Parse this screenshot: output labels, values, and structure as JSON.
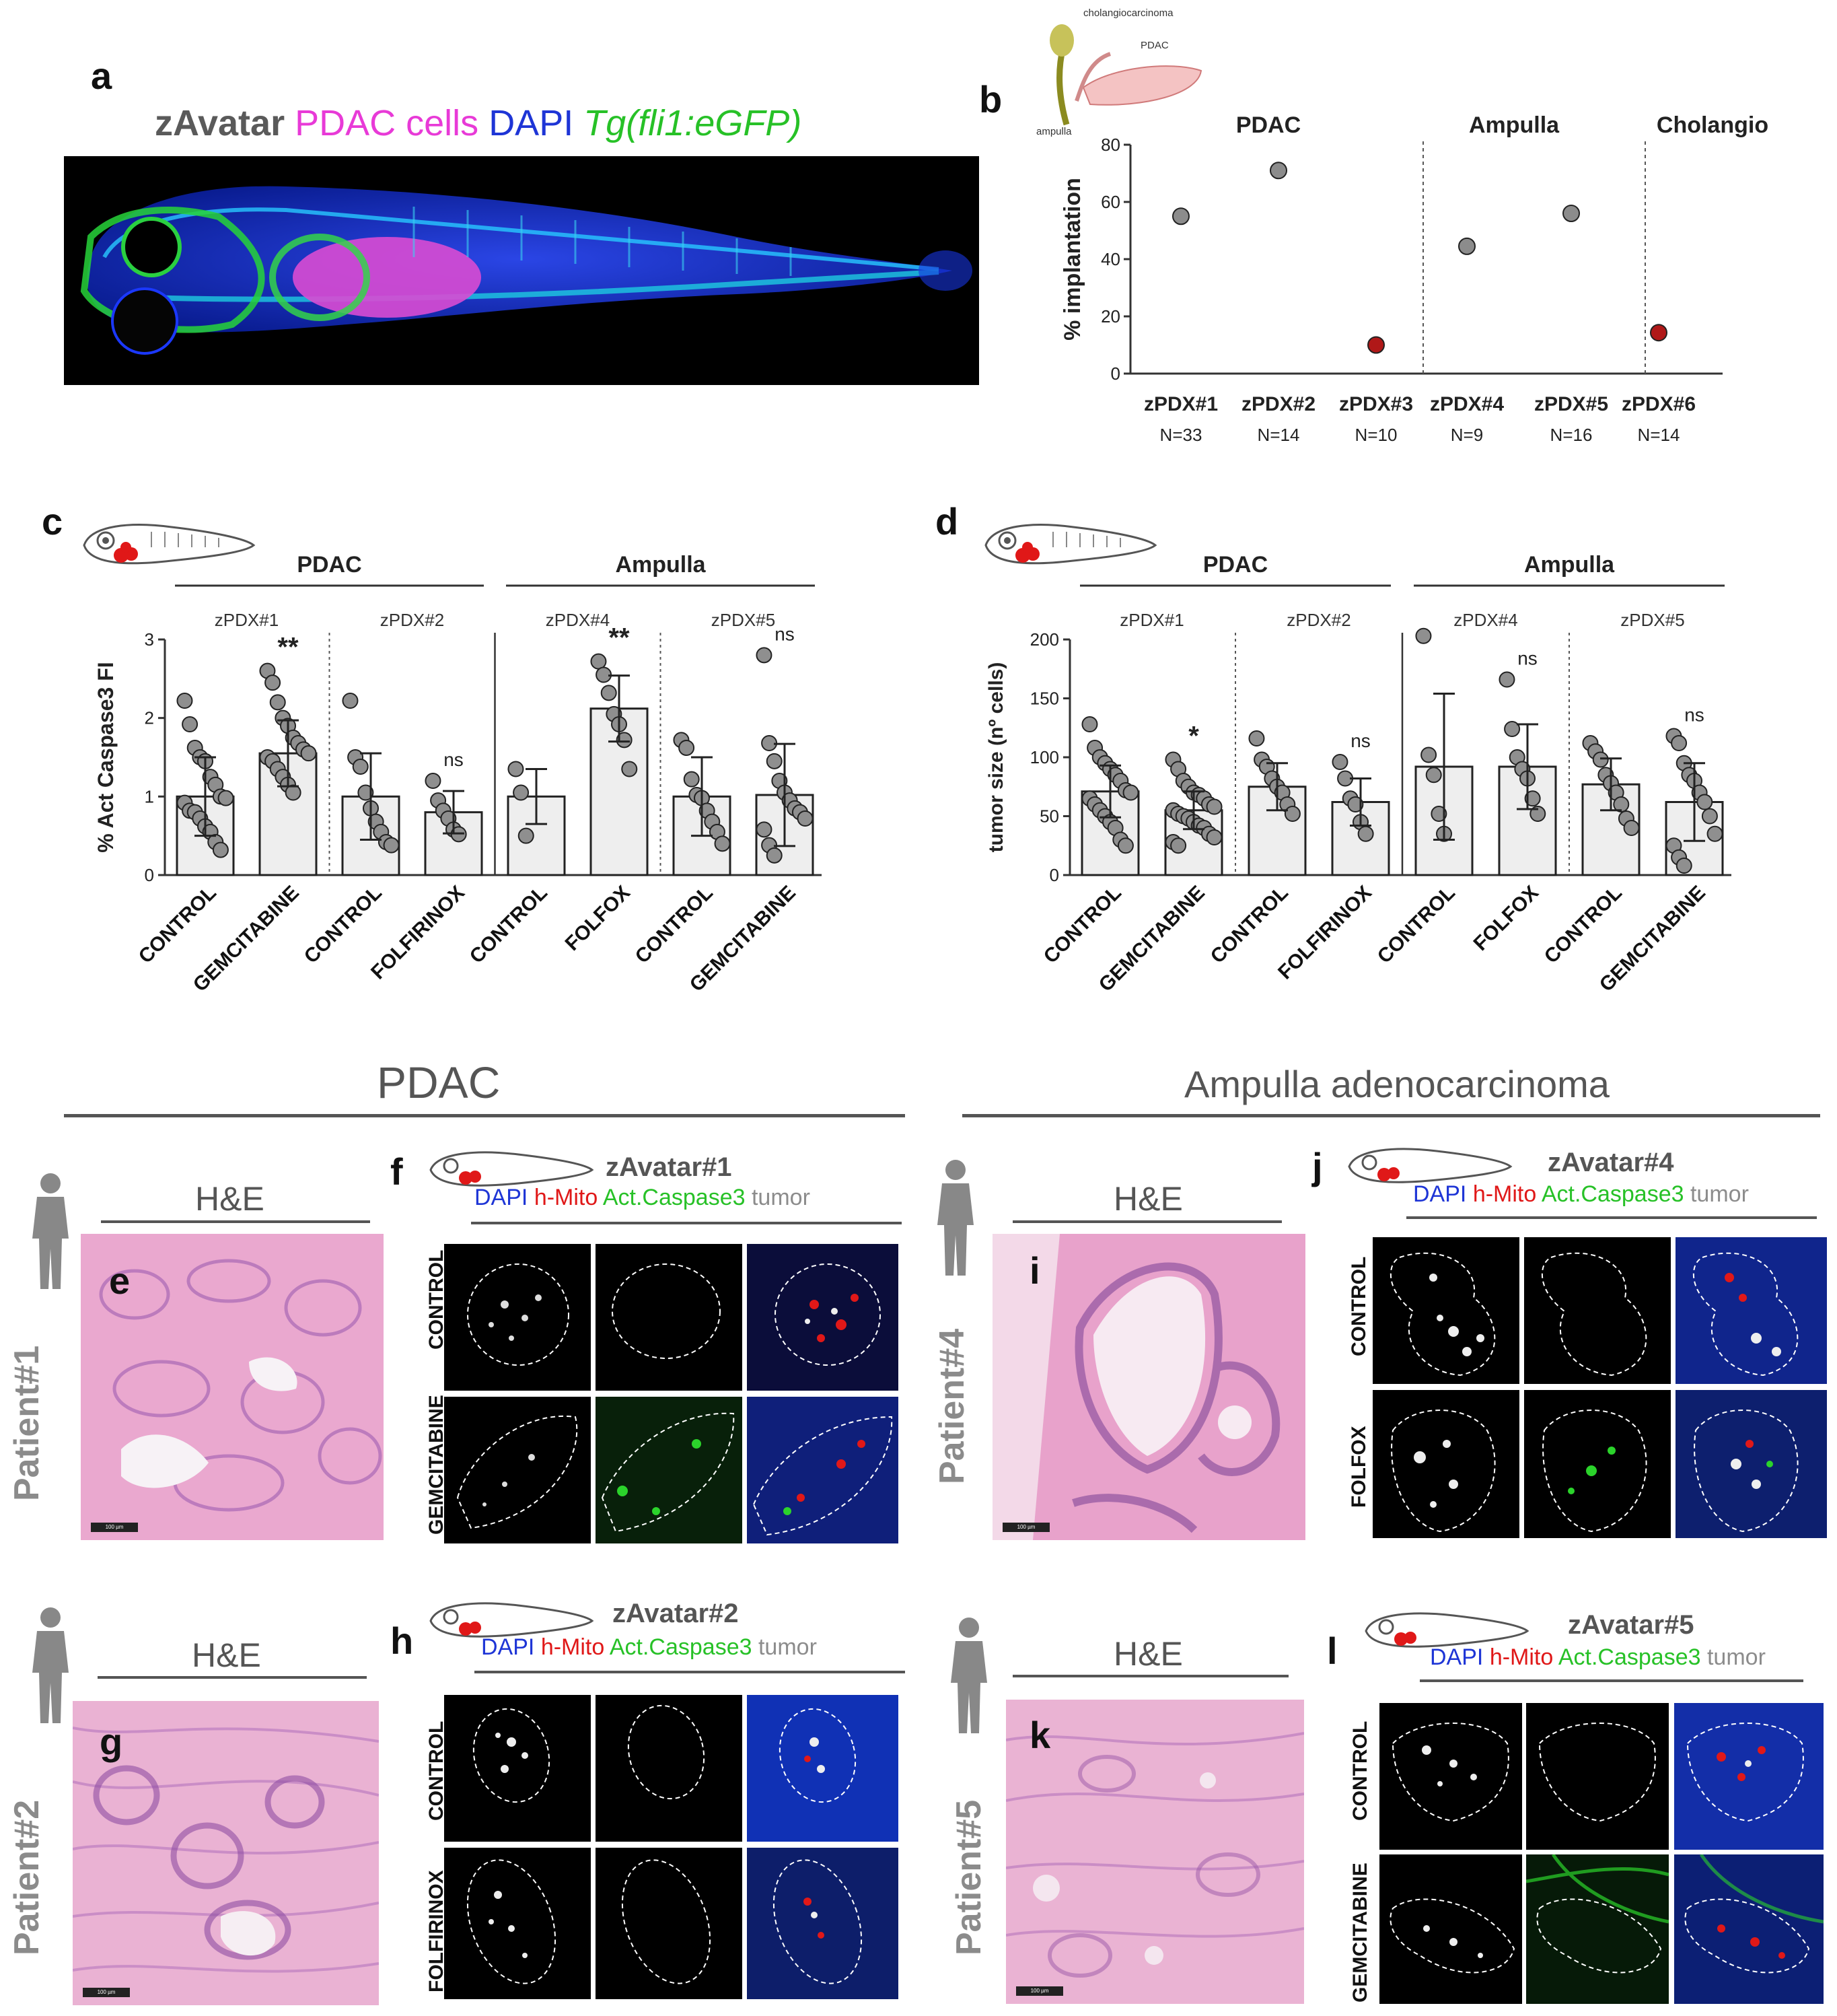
{
  "panel_letters": {
    "a": "a",
    "b": "b",
    "c": "c",
    "d": "d",
    "e": "e",
    "f": "f",
    "g": "g",
    "h": "h",
    "i": "i",
    "j": "j",
    "k": "k",
    "l": "l"
  },
  "panel_a": {
    "title_parts": [
      {
        "text": "zAvatar",
        "color": "#5a5a5a",
        "italic": false
      },
      {
        "text": "PDAC cells",
        "color": "#e83ad7",
        "italic": false
      },
      {
        "text": "DAPI",
        "color": "#1e35d6",
        "italic": false
      },
      {
        "text": "Tg(fli1:eGFP)",
        "color": "#27c127",
        "italic": true
      }
    ]
  },
  "panel_b": {
    "inset_labels": {
      "top": "cholangiocarcinoma",
      "middle": "PDAC",
      "bottom": "ampulla"
    },
    "groups": [
      "PDAC",
      "Ampulla",
      "Cholangio"
    ],
    "n_labels": [
      "N=33",
      "N=14",
      "N=10",
      "N=9",
      "N=16",
      "N=14"
    ],
    "tick_labels": [
      "0",
      "20",
      "40",
      "60",
      "80"
    ],
    "colors": {
      "normal": "#8c8c8c",
      "low": "#b01818"
    }
  },
  "panel_c": {
    "groups": [
      "PDAC",
      "Ampulla"
    ],
    "subgroups": [
      "zPDX#1",
      "zPDX#2",
      "zPDX#4",
      "zPDX#5"
    ],
    "tick_labels": [
      "0",
      "1",
      "2",
      "3"
    ],
    "significance": [
      "",
      "**",
      "",
      "ns",
      "",
      "**",
      "",
      "ns"
    ]
  },
  "panel_d": {
    "groups": [
      "PDAC",
      "Ampulla"
    ],
    "subgroups": [
      "zPDX#1",
      "zPDX#2",
      "zPDX#4",
      "zPDX#5"
    ],
    "tick_labels": [
      "0",
      "50",
      "100",
      "150",
      "200"
    ],
    "significance": [
      "",
      "*",
      "",
      "ns",
      "",
      "ns",
      "",
      "ns"
    ]
  },
  "chart_data": [
    {
      "type": "scatter",
      "title": "",
      "xlabel": "",
      "ylabel": "% implantation",
      "ylim": [
        0,
        80
      ],
      "categories": [
        "zPDX#1",
        "zPDX#2",
        "zPDX#3",
        "zPDX#4",
        "zPDX#5",
        "zPDX#6"
      ],
      "values": [
        55,
        71,
        10,
        44.5,
        56,
        14.3
      ],
      "n": [
        "N=33",
        "N=14",
        "N=10",
        "N=9",
        "N=16",
        "N=14"
      ],
      "groups": [
        {
          "name": "PDAC",
          "categories": [
            "zPDX#1",
            "zPDX#2",
            "zPDX#3"
          ]
        },
        {
          "name": "Ampulla",
          "categories": [
            "zPDX#4",
            "zPDX#5"
          ]
        },
        {
          "name": "Cholangio",
          "categories": [
            "zPDX#6"
          ]
        }
      ],
      "highlighted": [
        "zPDX#3",
        "zPDX#6"
      ],
      "grid": false
    },
    {
      "type": "bar",
      "title": "",
      "xlabel": "",
      "ylabel": "% Act Caspase3 FI",
      "ylim": [
        0,
        3
      ],
      "categories": [
        "CONTROL",
        "GEMCITABINE",
        "CONTROL",
        "FOLFIRINOX",
        "CONTROL",
        "FOLFOX",
        "CONTROL",
        "GEMCITABINE"
      ],
      "values": [
        1.0,
        1.55,
        1.0,
        0.8,
        1.0,
        2.12,
        1.0,
        1.02
      ],
      "sd": [
        0.5,
        0.42,
        0.55,
        0.27,
        0.35,
        0.42,
        0.5,
        0.65
      ],
      "points": [
        [
          2.22,
          1.92,
          1.62,
          1.5,
          1.45,
          1.25,
          1.15,
          1.0,
          0.98,
          0.92,
          0.82,
          0.8,
          0.72,
          0.62,
          0.55,
          0.42,
          0.32
        ],
        [
          2.6,
          2.45,
          2.2,
          2.0,
          1.9,
          1.75,
          1.68,
          1.6,
          1.55,
          1.5,
          1.45,
          1.35,
          1.25,
          1.15,
          1.05
        ],
        [
          2.22,
          1.5,
          1.38,
          1.05,
          0.85,
          0.68,
          0.55,
          0.42,
          0.38
        ],
        [
          1.2,
          0.95,
          0.82,
          0.72,
          0.58,
          0.52
        ],
        [
          1.35,
          1.05,
          0.5
        ],
        [
          2.72,
          2.55,
          2.32,
          2.05,
          1.92,
          1.72,
          1.35
        ],
        [
          1.72,
          1.62,
          1.22,
          1.02,
          0.98,
          0.82,
          0.68,
          0.55,
          0.4
        ],
        [
          2.8,
          1.68,
          1.45,
          1.2,
          1.05,
          0.95,
          0.85,
          0.8,
          0.72,
          0.58,
          0.38,
          0.25
        ]
      ],
      "significance": [
        "",
        "**",
        "",
        "ns",
        "",
        "**",
        "",
        "ns"
      ],
      "groups": [
        {
          "name": "PDAC",
          "subgroups": [
            "zPDX#1",
            "zPDX#2"
          ]
        },
        {
          "name": "Ampulla",
          "subgroups": [
            "zPDX#4",
            "zPDX#5"
          ]
        }
      ]
    },
    {
      "type": "bar",
      "title": "",
      "xlabel": "",
      "ylabel": "tumor size (nº cells)",
      "ylim": [
        0,
        200
      ],
      "categories": [
        "CONTROL",
        "GEMCITABINE",
        "CONTROL",
        "FOLFIRINOX",
        "CONTROL",
        "FOLFOX",
        "CONTROL",
        "GEMCITABINE"
      ],
      "values": [
        71,
        55,
        75,
        62,
        92,
        92,
        77,
        62
      ],
      "sd": [
        22,
        16,
        20,
        20,
        62,
        36,
        22,
        33
      ],
      "points": [
        [
          128,
          108,
          100,
          95,
          90,
          85,
          80,
          72,
          70,
          65,
          60,
          55,
          50,
          45,
          40,
          30,
          25
        ],
        [
          98,
          90,
          80,
          75,
          70,
          68,
          65,
          60,
          58,
          55,
          52,
          50,
          48,
          45,
          42,
          40,
          35,
          32,
          28,
          25
        ],
        [
          116,
          98,
          92,
          82,
          75,
          70,
          60,
          52
        ],
        [
          96,
          82,
          65,
          60,
          45,
          35
        ],
        [
          203,
          102,
          85,
          52,
          35
        ],
        [
          166,
          124,
          100,
          90,
          82,
          65,
          52
        ],
        [
          112,
          105,
          98,
          85,
          78,
          70,
          60,
          48,
          40
        ],
        [
          118,
          112,
          95,
          85,
          80,
          70,
          62,
          50,
          35,
          25,
          15,
          8
        ]
      ],
      "significance": [
        "",
        "*",
        "",
        "ns",
        "",
        "ns",
        "",
        "ns"
      ],
      "groups": [
        {
          "name": "PDAC",
          "subgroups": [
            "zPDX#1",
            "zPDX#2"
          ]
        },
        {
          "name": "Ampulla",
          "subgroups": [
            "zPDX#4",
            "zPDX#5"
          ]
        }
      ]
    }
  ],
  "section_titles": {
    "pdac": "PDAC",
    "ampulla": "Ampulla adenocarcinoma"
  },
  "he_label": "H&E",
  "patients": {
    "p1": "Patient#1",
    "p2": "Patient#2",
    "p4": "Patient#4",
    "p5": "Patient#5"
  },
  "scale_text": "100 µm",
  "zavatars": {
    "z1": "zAvatar#1",
    "z2": "zAvatar#2",
    "z4": "zAvatar#4",
    "z5": "zAvatar#5"
  },
  "stain_legend": [
    {
      "text": "DAPI",
      "color": "#1e35d6"
    },
    {
      "text": "h-Mito",
      "color": "#e01818"
    },
    {
      "text": "Act.Caspase3",
      "color": "#27c127"
    },
    {
      "text": "tumor",
      "color": "#8c8c8c"
    }
  ],
  "micro_rows": {
    "f": [
      "CONTROL",
      "GEMCITABINE"
    ],
    "h": [
      "CONTROL",
      "FOLFIRINOX"
    ],
    "j": [
      "CONTROL",
      "FOLFOX"
    ],
    "l": [
      "CONTROL",
      "GEMCITABINE"
    ]
  },
  "colors": {
    "bar_fill": "#eeeeee",
    "point_fill": "#8f8f8f",
    "he_pink": "#e9a6cc",
    "he_purple": "#9b5aa8"
  }
}
